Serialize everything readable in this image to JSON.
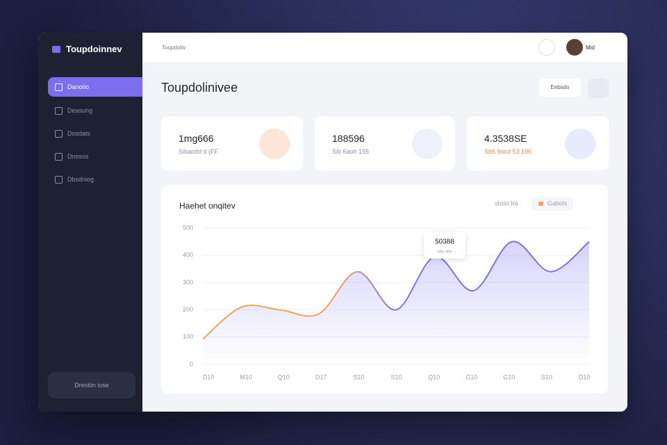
{
  "sidebar": {
    "brand": "Toupdoinnev",
    "nav": [
      "Danotio",
      "Deasung",
      "Dosdats",
      "Dnosos",
      "Dbsdniog"
    ],
    "footer_button": "Drestiin iose"
  },
  "topbar": {
    "breadcrumb": "Toupdotiv",
    "user": "Mid"
  },
  "page": {
    "title": "Toupdolinivee",
    "action": "Eebsdo"
  },
  "stats": [
    {
      "value": "1mg666",
      "label": "Sibaodd d (FF"
    },
    {
      "value": "188596",
      "label": "Sib 6aoh 155"
    },
    {
      "value": "4.3538SE",
      "label": "Sb6 9ocd 53 196"
    }
  ],
  "chart_data": {
    "type": "area",
    "title": "Haehet onqitev",
    "filter": "sbslo ba",
    "legend": "Gabols",
    "tooltip": {
      "value": "50388",
      "label": "sbo obs"
    },
    "categories": [
      "D10",
      "M10",
      "Q10",
      "D17",
      "S10",
      "S10",
      "Q10",
      "G10",
      "G10",
      "S10",
      "D10"
    ],
    "values": [
      93,
      210,
      200,
      185,
      340,
      200,
      395,
      270,
      450,
      340,
      450
    ],
    "ylim": [
      0,
      500
    ],
    "yticks": [
      0,
      100,
      200,
      300,
      400,
      500
    ],
    "grid": true,
    "colors": [
      "#f0a25a",
      "#7b74e0"
    ]
  }
}
